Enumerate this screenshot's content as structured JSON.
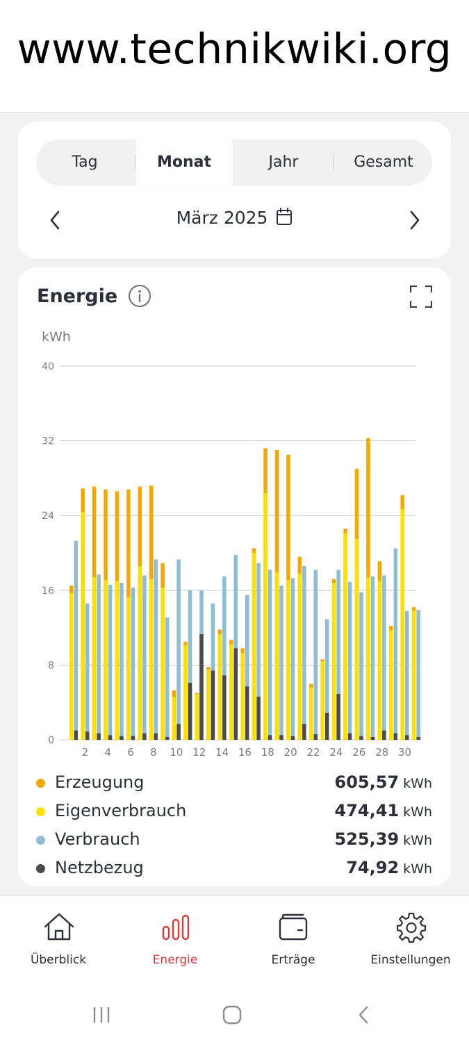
{
  "watermark": "www.technikwiki.org",
  "period_tabs": [
    {
      "label": "Tag",
      "active": false
    },
    {
      "label": "Monat",
      "active": true
    },
    {
      "label": "Jahr",
      "active": false
    },
    {
      "label": "Gesamt",
      "active": false
    }
  ],
  "period_label": "März 2025",
  "energy_card": {
    "title": "Energie"
  },
  "chart_data": {
    "type": "bar",
    "ylabel": "kWh",
    "ylim": [
      0,
      40
    ],
    "yticks": [
      0,
      8,
      16,
      24,
      32,
      40
    ],
    "xticks": [
      2,
      4,
      6,
      8,
      10,
      12,
      14,
      16,
      18,
      20,
      22,
      24,
      26,
      28,
      30
    ],
    "grid": true,
    "x": [
      1,
      2,
      3,
      4,
      5,
      6,
      7,
      8,
      9,
      10,
      11,
      12,
      13,
      14,
      15,
      16,
      17,
      18,
      19,
      20,
      21,
      22,
      23,
      24,
      25,
      26,
      27,
      28,
      29,
      30,
      31
    ],
    "series": [
      {
        "name": "Erzeugung",
        "color": "#f5a800",
        "values": [
          16.5,
          26.9,
          27.1,
          26.8,
          26.6,
          26.8,
          27.1,
          27.2,
          18.9,
          5.3,
          10.5,
          5.0,
          7.8,
          11.8,
          10.7,
          9.8,
          20.5,
          31.2,
          31.0,
          30.5,
          19.6,
          6.0,
          8.6,
          17.2,
          22.6,
          29.0,
          32.3,
          19.1,
          12.2,
          26.2,
          14.2
        ]
      },
      {
        "name": "Eigenverbrauch",
        "color": "#ffe100",
        "values": [
          15.7,
          24.4,
          17.4,
          17.1,
          17.0,
          15.3,
          18.6,
          17.2,
          16.3,
          4.6,
          10.1,
          4.9,
          7.5,
          11.3,
          10.2,
          9.3,
          20.0,
          26.4,
          17.9,
          17.1,
          17.8,
          5.6,
          8.4,
          16.8,
          22.1,
          21.5,
          17.4,
          17.0,
          11.7,
          24.7,
          13.8
        ]
      },
      {
        "name": "Verbrauch",
        "color": "#8fbdd3",
        "values": [
          21.3,
          14.6,
          17.7,
          16.6,
          16.8,
          16.3,
          17.6,
          19.3,
          13.1,
          19.3,
          16.0,
          16.0,
          14.6,
          17.5,
          19.8,
          15.5,
          18.9,
          18.2,
          16.5,
          17.3,
          18.6,
          18.2,
          12.9,
          18.2,
          16.9,
          15.8,
          17.5,
          17.6,
          20.5,
          13.8,
          13.9
        ]
      },
      {
        "name": "Netzbezug",
        "color": "#4b4b4b",
        "values": [
          1.0,
          0.9,
          0.7,
          0.5,
          0.4,
          0.4,
          0.7,
          0.7,
          0.3,
          1.7,
          6.1,
          11.3,
          7.4,
          6.9,
          9.8,
          5.7,
          4.6,
          0.5,
          0.5,
          0.4,
          1.7,
          0.6,
          2.9,
          4.9,
          0.7,
          0.4,
          0.3,
          1.0,
          0.7,
          0.5,
          0.3
        ]
      }
    ]
  },
  "legend": [
    {
      "name": "Erzeugung",
      "value": "605,57",
      "unit": "kWh",
      "color": "#f5a800"
    },
    {
      "name": "Eigenverbrauch",
      "value": "474,41",
      "unit": "kWh",
      "color": "#ffe100"
    },
    {
      "name": "Verbrauch",
      "value": "525,39",
      "unit": "kWh",
      "color": "#8fbdd3"
    },
    {
      "name": "Netzbezug",
      "value": "74,92",
      "unit": "kWh",
      "color": "#4b4b4b"
    }
  ],
  "bottom_nav": [
    {
      "label": "Überblick",
      "icon": "home-icon",
      "active": false
    },
    {
      "label": "Energie",
      "icon": "bar-chart-icon",
      "active": true
    },
    {
      "label": "Erträge",
      "icon": "wallet-icon",
      "active": false
    },
    {
      "label": "Einstellungen",
      "icon": "gear-icon",
      "active": false
    }
  ],
  "colors": {
    "accent": "#d93a3a"
  }
}
